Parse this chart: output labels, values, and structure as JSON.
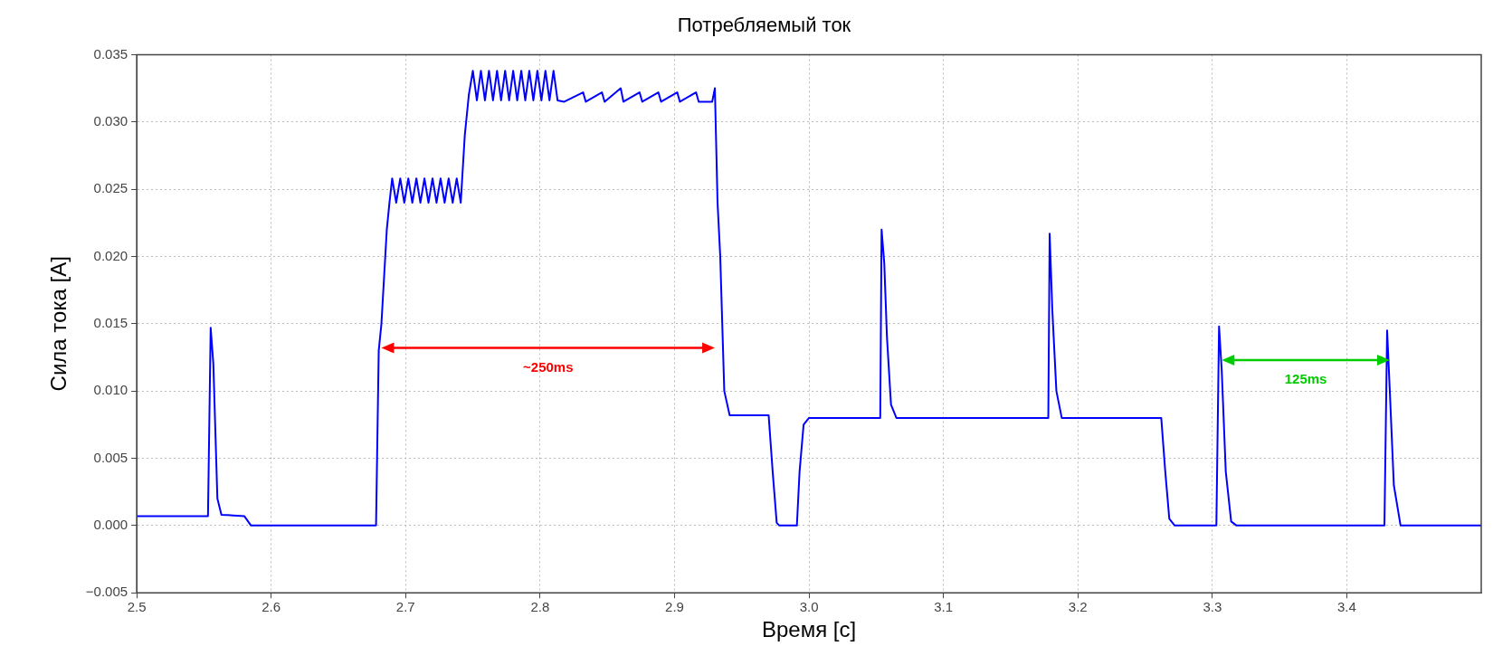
{
  "chart_data": {
    "type": "line",
    "title": "Потребляемый ток",
    "xlabel": "Время [с]",
    "ylabel": "Сила тока [А]",
    "xlim": [
      2.5,
      3.5
    ],
    "xticks": [
      2.5,
      2.6,
      2.7,
      2.8,
      2.9,
      {
        "value": 3.0,
        "label": "3.0"
      },
      3.1,
      3.2,
      3.3,
      3.4
    ],
    "ylim": [
      -0.005,
      0.035
    ],
    "yticks": [
      {
        "value": -0.005,
        "label": "−0.005"
      },
      {
        "value": 0,
        "label": "0.000"
      },
      0.005,
      {
        "value": 0.01,
        "label": "0.010"
      },
      0.015,
      {
        "value": 0.02,
        "label": "0.020"
      },
      0.025,
      {
        "value": 0.03,
        "label": "0.030"
      },
      0.035
    ],
    "grid": true,
    "legend": false,
    "marker": "none",
    "line_style": "solid",
    "annotations": [
      "~250ms",
      "125ms"
    ],
    "series": [
      {
        "color": "#0000ff",
        "x": [
          2.5,
          2.553,
          2.555,
          2.557,
          2.56,
          2.563,
          2.58,
          2.585,
          2.678,
          2.68,
          2.682,
          2.684,
          2.686,
          2.688,
          2.69,
          2.693,
          2.696,
          2.699,
          2.702,
          2.705,
          2.708,
          2.711,
          2.714,
          2.717,
          2.72,
          2.723,
          2.726,
          2.729,
          2.732,
          2.735,
          2.738,
          2.741,
          2.744,
          2.747,
          2.75,
          2.753,
          2.756,
          2.759,
          2.762,
          2.765,
          2.768,
          2.771,
          2.774,
          2.777,
          2.78,
          2.783,
          2.786,
          2.789,
          2.792,
          2.795,
          2.798,
          2.801,
          2.804,
          2.807,
          2.81,
          2.813,
          2.818,
          2.832,
          2.834,
          2.846,
          2.848,
          2.86,
          2.862,
          2.874,
          2.876,
          2.888,
          2.89,
          2.902,
          2.904,
          2.916,
          2.918,
          2.928,
          2.93,
          2.932,
          2.934,
          2.937,
          2.941,
          2.97,
          2.973,
          2.976,
          2.978,
          2.991,
          2.993,
          2.996,
          3.0,
          3.053,
          3.054,
          3.056,
          3.058,
          3.061,
          3.065,
          3.178,
          3.179,
          3.181,
          3.184,
          3.188,
          3.262,
          3.265,
          3.268,
          3.272,
          3.303,
          3.305,
          3.307,
          3.31,
          3.314,
          3.318,
          3.428,
          3.43,
          3.432,
          3.435,
          3.44,
          3.5
        ],
        "values": [
          0.0007,
          0.0007,
          0.0147,
          0.012,
          0.002,
          0.0008,
          0.0007,
          0,
          0,
          0.013,
          0.015,
          0.0185,
          0.022,
          0.024,
          0.0258,
          0.024,
          0.0258,
          0.024,
          0.0258,
          0.024,
          0.0258,
          0.024,
          0.0258,
          0.024,
          0.0258,
          0.024,
          0.0258,
          0.024,
          0.0258,
          0.024,
          0.0258,
          0.024,
          0.029,
          0.032,
          0.0338,
          0.0316,
          0.0338,
          0.0316,
          0.0338,
          0.0316,
          0.0338,
          0.0316,
          0.0338,
          0.0316,
          0.0338,
          0.0316,
          0.0338,
          0.0316,
          0.0338,
          0.0316,
          0.0338,
          0.0316,
          0.0338,
          0.0316,
          0.0338,
          0.0316,
          0.0315,
          0.0322,
          0.0315,
          0.0322,
          0.0315,
          0.0325,
          0.0315,
          0.0322,
          0.0315,
          0.0322,
          0.0315,
          0.0322,
          0.0315,
          0.0322,
          0.0315,
          0.0315,
          0.0325,
          0.024,
          0.02,
          0.01,
          0.0082,
          0.0082,
          0.004,
          0.0002,
          0,
          0,
          0.004,
          0.0075,
          0.008,
          0.008,
          0.022,
          0.0195,
          0.014,
          0.009,
          0.008,
          0.008,
          0.0217,
          0.016,
          0.01,
          0.008,
          0.008,
          0.004,
          0.0005,
          0,
          0,
          0.0148,
          0.0115,
          0.004,
          0.0003,
          0,
          0,
          0.0145,
          0.01,
          0.003,
          0,
          0
        ]
      }
    ]
  }
}
